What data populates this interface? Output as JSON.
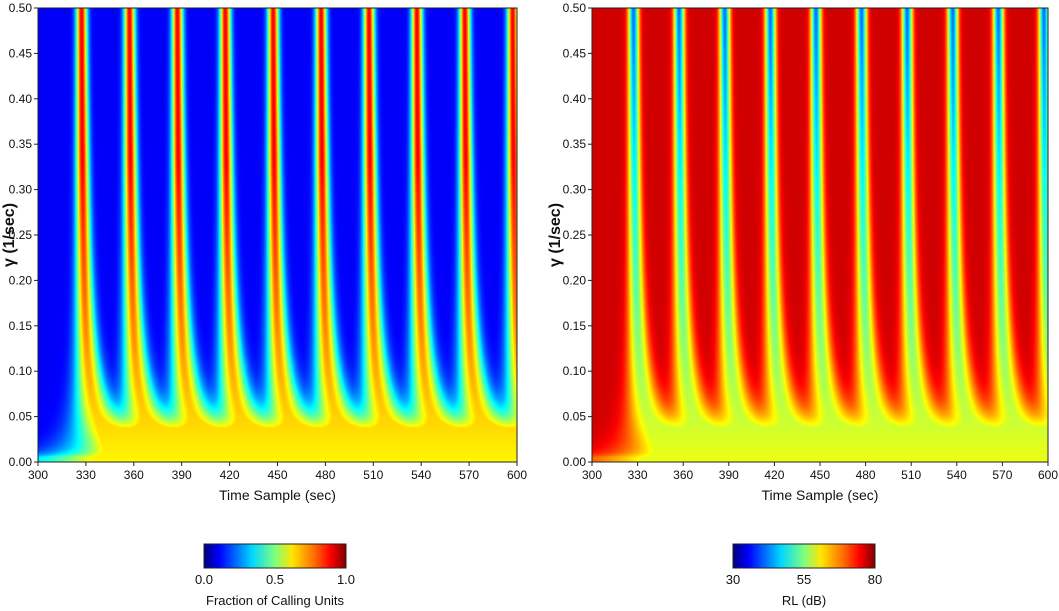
{
  "chart_data": [
    {
      "type": "heatmap",
      "title": "",
      "xlabel": "Time Sample (sec)",
      "ylabel": "γ (1/sec)",
      "xlim": [
        300,
        600
      ],
      "ylim": [
        0.0,
        0.5
      ],
      "x_ticks": [
        "300",
        "330",
        "360",
        "390",
        "420",
        "450",
        "480",
        "510",
        "540",
        "570",
        "600"
      ],
      "y_ticks": [
        "0.00",
        "0.05",
        "0.10",
        "0.15",
        "0.20",
        "0.25",
        "0.30",
        "0.35",
        "0.40",
        "0.45",
        "0.50"
      ],
      "colormap": "jet",
      "background_value": 0.0,
      "peak_value": 0.75,
      "ridge_times_at_top": [
        327,
        357,
        387,
        417,
        447,
        477,
        507,
        537,
        567,
        597
      ],
      "colorbar": {
        "label": "Fraction of Calling Units",
        "min": 0.0,
        "max": 1.0,
        "ticks": [
          "0.0",
          "0.5",
          "1.0"
        ]
      }
    },
    {
      "type": "heatmap",
      "title": "",
      "xlabel": "Time Sample (sec)",
      "ylabel": "γ (1/sec)",
      "xlim": [
        300,
        600
      ],
      "ylim": [
        0.0,
        0.5
      ],
      "x_ticks": [
        "300",
        "330",
        "360",
        "390",
        "420",
        "450",
        "480",
        "510",
        "540",
        "570",
        "600"
      ],
      "y_ticks": [
        "0.00",
        "0.05",
        "0.10",
        "0.15",
        "0.20",
        "0.25",
        "0.30",
        "0.35",
        "0.40",
        "0.45",
        "0.50"
      ],
      "colormap": "jet",
      "background_value": 80,
      "trough_value": 32,
      "ridge_times_at_top": [
        327,
        357,
        387,
        417,
        447,
        477,
        507,
        537,
        567,
        597
      ],
      "colorbar": {
        "label": "RL (dB)",
        "min": 30,
        "max": 80,
        "ticks": [
          "30",
          "55",
          "80"
        ]
      }
    }
  ]
}
